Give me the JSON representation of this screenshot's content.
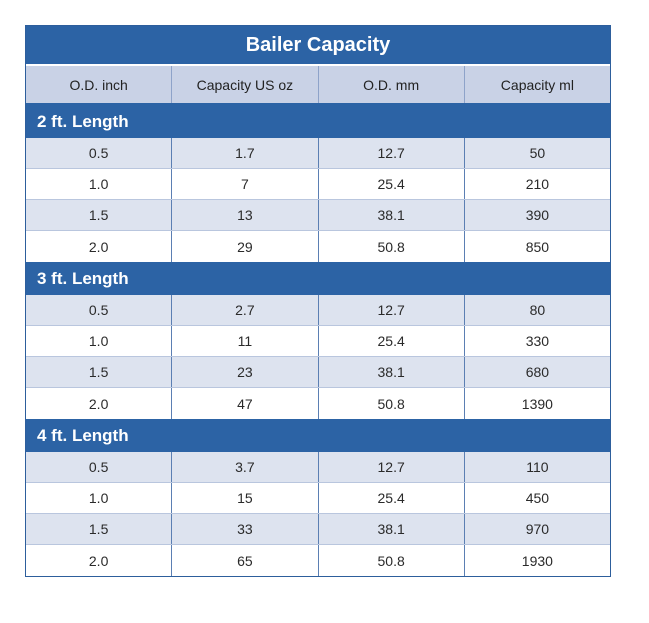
{
  "chart_data": {
    "type": "table",
    "title": "Bailer Capacity",
    "columns": [
      "O.D. inch",
      "Capacity US oz",
      "O.D. mm",
      "Capacity ml"
    ],
    "sections": [
      {
        "label": "2 ft. Length",
        "rows": [
          [
            "0.5",
            "1.7",
            "12.7",
            "50"
          ],
          [
            "1.0",
            "7",
            "25.4",
            "210"
          ],
          [
            "1.5",
            "13",
            "38.1",
            "390"
          ],
          [
            "2.0",
            "29",
            "50.8",
            "850"
          ]
        ]
      },
      {
        "label": "3 ft. Length",
        "rows": [
          [
            "0.5",
            "2.7",
            "12.7",
            "80"
          ],
          [
            "1.0",
            "11",
            "25.4",
            "330"
          ],
          [
            "1.5",
            "23",
            "38.1",
            "680"
          ],
          [
            "2.0",
            "47",
            "50.8",
            "1390"
          ]
        ]
      },
      {
        "label": "4 ft. Length",
        "rows": [
          [
            "0.5",
            "3.7",
            "12.7",
            "110"
          ],
          [
            "1.0",
            "15",
            "25.4",
            "450"
          ],
          [
            "1.5",
            "33",
            "38.1",
            "970"
          ],
          [
            "2.0",
            "65",
            "50.8",
            "1930"
          ]
        ]
      }
    ]
  }
}
